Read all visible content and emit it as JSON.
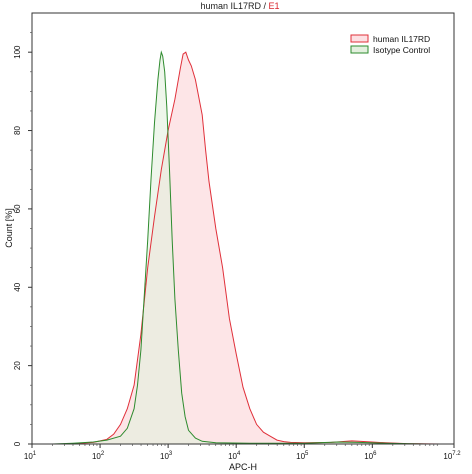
{
  "chart_data": {
    "type": "area",
    "title_prefix": "human IL17RD / ",
    "title_highlight": "E1",
    "xlabel": "APC-H",
    "ylabel": "Count [%]",
    "xscale": "log",
    "xlim": [
      10,
      15848931.9
    ],
    "ylim": [
      0,
      110
    ],
    "x_ticks": [
      {
        "value": 10,
        "base": "10",
        "exp": "1"
      },
      {
        "value": 100,
        "base": "10",
        "exp": "2"
      },
      {
        "value": 1000,
        "base": "10",
        "exp": "3"
      },
      {
        "value": 10000,
        "base": "10",
        "exp": "4"
      },
      {
        "value": 100000,
        "base": "10",
        "exp": "5"
      },
      {
        "value": 1000000,
        "base": "10",
        "exp": "6"
      },
      {
        "value": 15848931.9,
        "base": "10",
        "exp": "7.2"
      }
    ],
    "y_ticks": [
      "0",
      "20",
      "40",
      "60",
      "80",
      "100"
    ],
    "legend_position": "top-right",
    "series": [
      {
        "name": "human IL17RD",
        "line_color": "#e0303a",
        "fill_color": "#fde0e3",
        "points": [
          [
            1.5,
            0.0
          ],
          [
            1.7,
            0.2
          ],
          [
            1.9,
            0.4
          ],
          [
            2.0,
            0.8
          ],
          [
            2.1,
            1.2
          ],
          [
            2.2,
            2.5
          ],
          [
            2.3,
            5.0
          ],
          [
            2.4,
            9.0
          ],
          [
            2.5,
            15.0
          ],
          [
            2.6,
            28.0
          ],
          [
            2.7,
            45.0
          ],
          [
            2.8,
            58.0
          ],
          [
            2.9,
            70.0
          ],
          [
            3.0,
            80.0
          ],
          [
            3.1,
            88.0
          ],
          [
            3.18,
            96.0
          ],
          [
            3.22,
            99.5
          ],
          [
            3.26,
            100.0
          ],
          [
            3.3,
            98.0
          ],
          [
            3.34,
            96.5
          ],
          [
            3.4,
            93.0
          ],
          [
            3.5,
            84.0
          ],
          [
            3.55,
            75.0
          ],
          [
            3.6,
            67.0
          ],
          [
            3.7,
            55.0
          ],
          [
            3.8,
            45.0
          ],
          [
            3.9,
            32.0
          ],
          [
            4.0,
            23.0
          ],
          [
            4.1,
            14.5
          ],
          [
            4.2,
            9.0
          ],
          [
            4.3,
            5.0
          ],
          [
            4.4,
            3.0
          ],
          [
            4.5,
            2.0
          ],
          [
            4.6,
            1.0
          ],
          [
            4.7,
            0.6
          ],
          [
            4.8,
            0.4
          ],
          [
            5.0,
            0.3
          ],
          [
            5.4,
            0.4
          ],
          [
            5.7,
            0.8
          ],
          [
            5.9,
            0.6
          ],
          [
            6.2,
            0.3
          ],
          [
            6.5,
            0.1
          ],
          [
            7.0,
            0.0
          ]
        ]
      },
      {
        "name": "Isotype Control",
        "line_color": "#2e8b2e",
        "fill_color": "#e3f0de",
        "points": [
          [
            1.3,
            0.0
          ],
          [
            1.6,
            0.2
          ],
          [
            1.9,
            0.5
          ],
          [
            2.1,
            1.0
          ],
          [
            2.3,
            2.0
          ],
          [
            2.4,
            4.0
          ],
          [
            2.5,
            9.0
          ],
          [
            2.55,
            15.0
          ],
          [
            2.6,
            24.0
          ],
          [
            2.65,
            38.0
          ],
          [
            2.7,
            52.0
          ],
          [
            2.75,
            68.0
          ],
          [
            2.8,
            82.0
          ],
          [
            2.85,
            93.0
          ],
          [
            2.88,
            98.0
          ],
          [
            2.9,
            100.0
          ],
          [
            2.92,
            99.0
          ],
          [
            2.95,
            95.0
          ],
          [
            2.98,
            86.0
          ],
          [
            3.02,
            70.0
          ],
          [
            3.06,
            52.0
          ],
          [
            3.1,
            37.0
          ],
          [
            3.15,
            24.0
          ],
          [
            3.2,
            13.0
          ],
          [
            3.25,
            7.0
          ],
          [
            3.3,
            3.5
          ],
          [
            3.4,
            1.5
          ],
          [
            3.5,
            0.7
          ],
          [
            3.7,
            0.3
          ],
          [
            4.2,
            0.2
          ],
          [
            5.0,
            0.2
          ],
          [
            5.5,
            0.5
          ],
          [
            5.8,
            0.4
          ],
          [
            6.2,
            0.2
          ],
          [
            6.8,
            0.0
          ]
        ]
      }
    ]
  }
}
